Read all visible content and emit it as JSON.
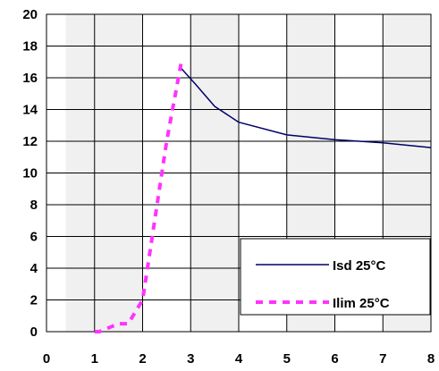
{
  "chart_data": {
    "type": "line",
    "title": "",
    "xlabel": "",
    "ylabel": "",
    "xlim": [
      0,
      8
    ],
    "ylim": [
      0,
      20
    ],
    "x_ticks": [
      0,
      1,
      2,
      3,
      4,
      5,
      6,
      7,
      8
    ],
    "y_ticks": [
      0,
      2,
      4,
      6,
      8,
      10,
      12,
      14,
      16,
      18,
      20
    ],
    "grid": true,
    "legend_position": "bottom-right",
    "series": [
      {
        "name": "Isd 25°C",
        "style": "solid",
        "color": "#000066",
        "x": [
          2.8,
          3.1,
          3.5,
          4.0,
          5.0,
          6.0,
          7.0,
          8.0
        ],
        "y": [
          16.6,
          15.6,
          14.2,
          13.2,
          12.4,
          12.1,
          11.9,
          11.6
        ]
      },
      {
        "name": "Ilim 25°C",
        "style": "dashed",
        "color": "#ff33ff",
        "x": [
          1.0,
          1.1,
          1.5,
          1.7,
          2.0,
          2.2,
          2.5,
          2.8
        ],
        "y": [
          0.0,
          0.0,
          0.5,
          0.5,
          2.0,
          6.0,
          12.0,
          16.9
        ]
      }
    ]
  }
}
